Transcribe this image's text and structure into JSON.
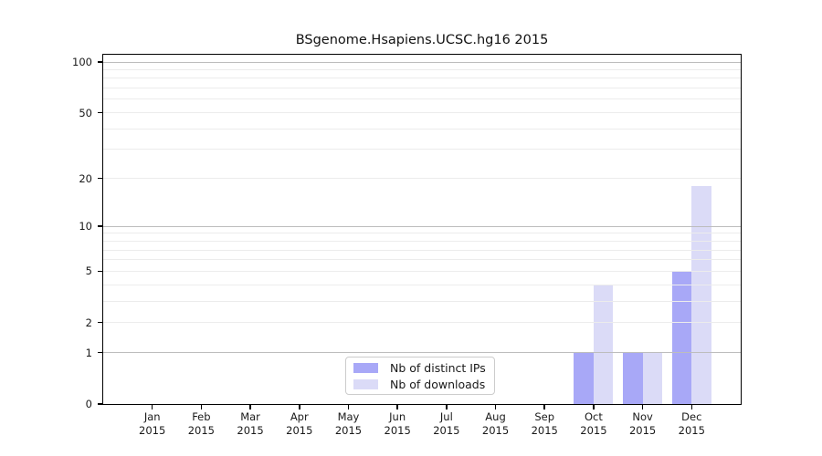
{
  "chart_data": {
    "type": "bar",
    "title": "BSgenome.Hsapiens.UCSC.hg16 2015",
    "categories": [
      "Jan",
      "Feb",
      "Mar",
      "Apr",
      "May",
      "Jun",
      "Jul",
      "Aug",
      "Sep",
      "Oct",
      "Nov",
      "Dec"
    ],
    "year_label": "2015",
    "series": [
      {
        "name": "Nb of distinct IPs",
        "color": "#a8a8f7",
        "values": [
          0,
          0,
          0,
          0,
          0,
          0,
          0,
          0,
          0,
          1,
          1,
          5
        ]
      },
      {
        "name": "Nb of downloads",
        "color": "#dbdbf7",
        "values": [
          0,
          0,
          0,
          0,
          0,
          0,
          0,
          0,
          0,
          4,
          1,
          18
        ]
      }
    ],
    "yscale": "log1p",
    "yticks": [
      0,
      1,
      2,
      5,
      10,
      20,
      50,
      100
    ],
    "major_gridlines": [
      1,
      10,
      100
    ],
    "minor_gridlines": [
      3,
      4,
      6,
      7,
      8,
      9,
      30,
      40,
      60,
      70,
      80,
      90
    ],
    "ylim": [
      0,
      111
    ],
    "grid": true,
    "legend_position": "lower center"
  },
  "colors": {
    "background": "#ffffff",
    "ips_bar": "#a8a8f7",
    "downloads_bar": "#dbdbf7",
    "major_gridline": "#bdbdbd",
    "minor_gridline": "#ececec",
    "axis": "#000000",
    "text": "#1a1a1a",
    "legend_border": "#cccccc"
  }
}
